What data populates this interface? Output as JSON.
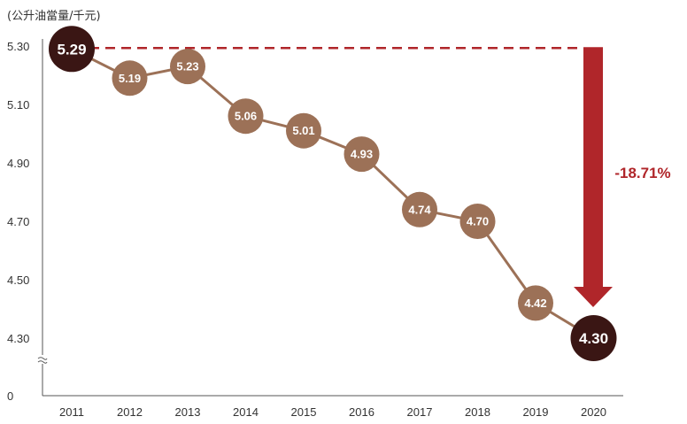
{
  "chart_data": {
    "type": "line",
    "unit_label": "(公升油當量/千元)",
    "categories": [
      "2011",
      "2012",
      "2013",
      "2014",
      "2015",
      "2016",
      "2017",
      "2018",
      "2019",
      "2020"
    ],
    "series": [
      {
        "values": [
          5.29,
          5.19,
          5.23,
          5.06,
          5.01,
          4.93,
          4.74,
          4.7,
          4.42,
          4.3
        ]
      }
    ],
    "data_labels": [
      "5.29",
      "5.19",
      "5.23",
      "5.06",
      "5.01",
      "4.93",
      "4.74",
      "4.70",
      "4.42",
      "4.30"
    ],
    "y_ticks": [
      {
        "value": 5.3,
        "label": "5.30"
      },
      {
        "value": 5.1,
        "label": "5.10"
      },
      {
        "value": 4.9,
        "label": "4.90"
      },
      {
        "value": 4.7,
        "label": "4.70"
      },
      {
        "value": 4.5,
        "label": "4.50"
      },
      {
        "value": 4.3,
        "label": "4.30"
      },
      {
        "value": 0,
        "label": "0"
      }
    ],
    "ylim": [
      4.3,
      5.3
    ],
    "axis_break": true,
    "grid": false,
    "annotation": {
      "text": "-18.71%",
      "from": "2011",
      "to": "2020",
      "color": "#b0262a"
    },
    "colors": {
      "line": "#9c7157",
      "marker": "#9c7157",
      "highlight_marker": "#3a1614",
      "reference_line": "#b0262a",
      "arrow": "#b0262a",
      "axis": "#555555"
    }
  }
}
